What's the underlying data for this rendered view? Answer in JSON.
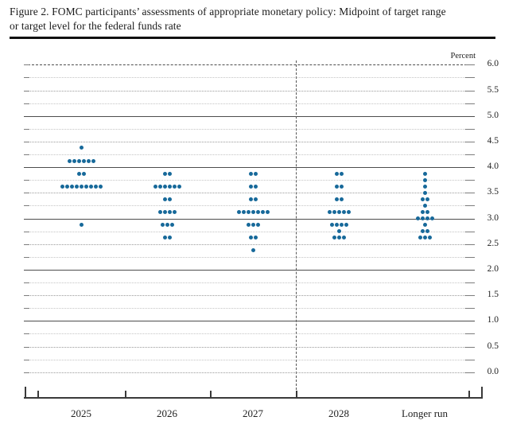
{
  "title": {
    "line1": "Figure 2. FOMC participants’ assessments of appropriate monetary policy: Midpoint of target range",
    "line2": "or target level for the federal funds rate"
  },
  "chart_data": {
    "type": "scatter",
    "subtype": "fomc-dot-plot",
    "title": "FOMC participants’ assessments of appropriate monetary policy: Midpoint of target range or target level for the federal funds rate",
    "unit_label": "Percent",
    "ylim": [
      0.0,
      6.0
    ],
    "grid_step": 0.25,
    "ytick_label_step": 0.5,
    "ytick_labels": [
      "6.0",
      "5.5",
      "5.0",
      "4.5",
      "4.0",
      "3.5",
      "3.0",
      "2.5",
      "2.0",
      "1.5",
      "1.0",
      "0.5",
      "0.0"
    ],
    "solid_gridlines": [
      1.0,
      2.0,
      3.0,
      4.0,
      5.0
    ],
    "dashed_top_gridline": 6.0,
    "legend_position": "none",
    "grid": "dotted quarter-point rules, solid integer rules",
    "categories": [
      "2025",
      "2026",
      "2027",
      "2028",
      "Longer run"
    ],
    "separator_before_category": "Longer run",
    "dot_color": "#17699a",
    "participants_per_year": 19,
    "series": [
      {
        "category": "2025",
        "dots": [
          {
            "rate": 4.375,
            "count": 1
          },
          {
            "rate": 4.125,
            "count": 6
          },
          {
            "rate": 3.875,
            "count": 2
          },
          {
            "rate": 3.625,
            "count": 9
          },
          {
            "rate": 2.875,
            "count": 1
          }
        ]
      },
      {
        "category": "2026",
        "dots": [
          {
            "rate": 3.875,
            "count": 2
          },
          {
            "rate": 3.625,
            "count": 6
          },
          {
            "rate": 3.375,
            "count": 2
          },
          {
            "rate": 3.125,
            "count": 4
          },
          {
            "rate": 2.875,
            "count": 3
          },
          {
            "rate": 2.625,
            "count": 2
          }
        ]
      },
      {
        "category": "2027",
        "dots": [
          {
            "rate": 3.875,
            "count": 2
          },
          {
            "rate": 3.625,
            "count": 2
          },
          {
            "rate": 3.375,
            "count": 2
          },
          {
            "rate": 3.125,
            "count": 7
          },
          {
            "rate": 2.875,
            "count": 3
          },
          {
            "rate": 2.625,
            "count": 2
          },
          {
            "rate": 2.375,
            "count": 1
          }
        ]
      },
      {
        "category": "2028",
        "dots": [
          {
            "rate": 3.875,
            "count": 2
          },
          {
            "rate": 3.625,
            "count": 2
          },
          {
            "rate": 3.375,
            "count": 2
          },
          {
            "rate": 3.125,
            "count": 5
          },
          {
            "rate": 2.875,
            "count": 4
          },
          {
            "rate": 2.75,
            "count": 1
          },
          {
            "rate": 2.625,
            "count": 3
          }
        ]
      },
      {
        "category": "Longer run",
        "dots": [
          {
            "rate": 3.875,
            "count": 1
          },
          {
            "rate": 3.75,
            "count": 1
          },
          {
            "rate": 3.625,
            "count": 1
          },
          {
            "rate": 3.5,
            "count": 1
          },
          {
            "rate": 3.375,
            "count": 2
          },
          {
            "rate": 3.25,
            "count": 1
          },
          {
            "rate": 3.125,
            "count": 2
          },
          {
            "rate": 3.0,
            "count": 4
          },
          {
            "rate": 2.875,
            "count": 1
          },
          {
            "rate": 2.75,
            "count": 2
          },
          {
            "rate": 2.625,
            "count": 3
          }
        ]
      }
    ]
  }
}
